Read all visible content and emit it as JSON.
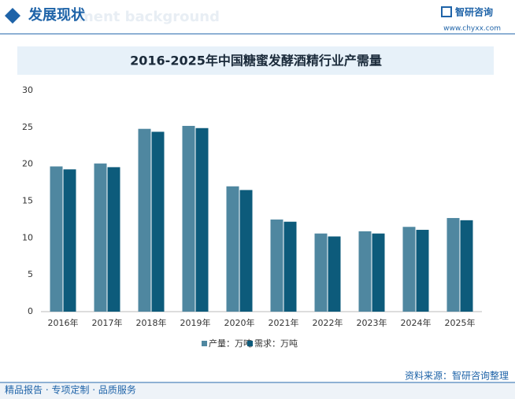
{
  "header": {
    "title": "发展现状",
    "watermark": "ment background",
    "logo": "智研咨询",
    "url": "www.chyxx.com"
  },
  "chart_data": {
    "type": "bar",
    "title": "2016-2025年中国糖蜜发酵酒精行业产需量",
    "categories": [
      "2016年",
      "2017年",
      "2018年",
      "2019年",
      "2020年",
      "2021年",
      "2022年",
      "2023年",
      "2024年",
      "2025年"
    ],
    "series": [
      {
        "name": "产量：万吨",
        "color": "#4f87a0",
        "values": [
          19.7,
          20.1,
          24.8,
          25.2,
          17.0,
          12.5,
          10.6,
          10.9,
          11.5,
          12.7
        ]
      },
      {
        "name": "需求：万吨",
        "color": "#0d5b7b",
        "values": [
          19.3,
          19.6,
          24.4,
          24.9,
          16.5,
          12.2,
          10.2,
          10.6,
          11.1,
          12.4
        ]
      }
    ],
    "ylim": [
      0,
      30
    ],
    "yticks": [
      0,
      5,
      10,
      15,
      20,
      25,
      30
    ],
    "grid": false
  },
  "footer": {
    "source": "资料来源：智研咨询整理",
    "slogan": "精品报告 · 专项定制 · 品质服务"
  }
}
